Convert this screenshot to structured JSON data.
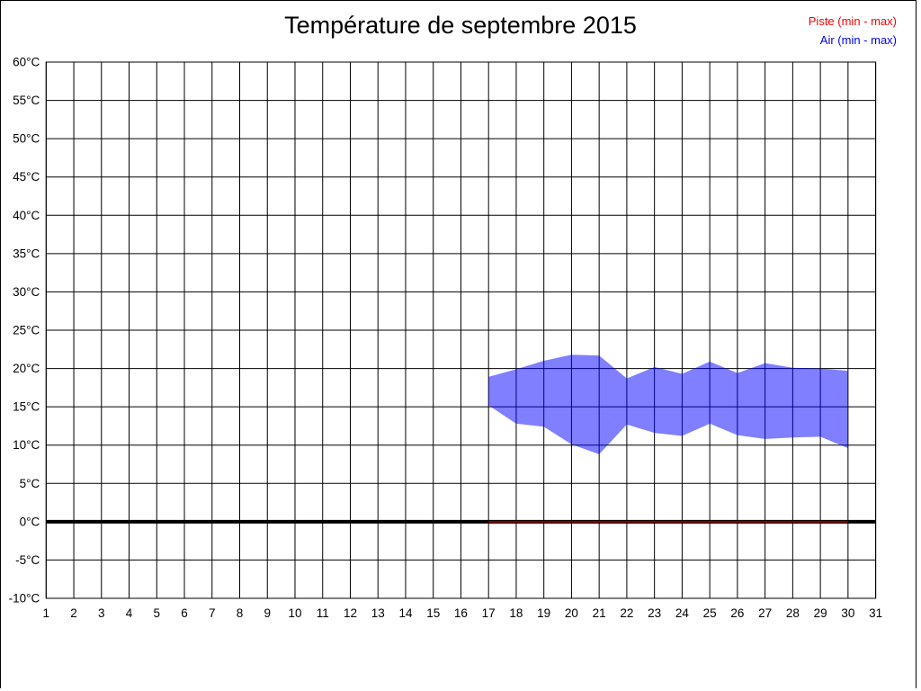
{
  "chart_data": {
    "type": "area",
    "title": "Température de septembre 2015",
    "legend_position": "top-right",
    "grid": true,
    "xlim": [
      1,
      31
    ],
    "ylim": [
      -10,
      60
    ],
    "x_ticks": [
      1,
      2,
      3,
      4,
      5,
      6,
      7,
      8,
      9,
      10,
      11,
      12,
      13,
      14,
      15,
      16,
      17,
      18,
      19,
      20,
      21,
      22,
      23,
      24,
      25,
      26,
      27,
      28,
      29,
      30,
      31
    ],
    "y_ticks": [
      {
        "value": 60,
        "label": "60°C"
      },
      {
        "value": 55,
        "label": "55°C"
      },
      {
        "value": 50,
        "label": "50°C"
      },
      {
        "value": 45,
        "label": "45°C"
      },
      {
        "value": 40,
        "label": "40°C"
      },
      {
        "value": 35,
        "label": "35°C"
      },
      {
        "value": 30,
        "label": "30°C"
      },
      {
        "value": 25,
        "label": "25°C"
      },
      {
        "value": 20,
        "label": "20°C"
      },
      {
        "value": 15,
        "label": "15°C"
      },
      {
        "value": 10,
        "label": "10°C"
      },
      {
        "value": 5,
        "label": "5°C"
      },
      {
        "value": 0,
        "label": "0°C"
      },
      {
        "value": -5,
        "label": "-5°C"
      },
      {
        "value": -10,
        "label": "-10°C"
      }
    ],
    "zero_line_value": 0,
    "zero_line_color": "#000000",
    "series": [
      {
        "name": "Piste (min - max)",
        "legend_color": "#ff0000",
        "draw_color": "rgba(255,0,0,0.5)",
        "days": [
          17,
          18,
          19,
          20,
          21,
          22,
          23,
          24,
          25,
          26,
          27,
          28,
          29,
          30
        ],
        "min": [
          0,
          0,
          0,
          0,
          0,
          0,
          0,
          0,
          0,
          0,
          0,
          0,
          0,
          0
        ],
        "max": [
          0,
          0,
          0,
          0,
          0,
          0,
          0,
          0,
          0,
          0,
          0,
          0,
          0,
          0
        ]
      },
      {
        "name": "Air (min - max)",
        "legend_color": "#0000ff",
        "draw_color": "rgba(0,0,255,0.5)",
        "days": [
          17,
          18,
          19,
          20,
          21,
          22,
          23,
          24,
          25,
          26,
          27,
          28,
          29,
          30
        ],
        "min": [
          15.2,
          12.8,
          12.4,
          10.1,
          8.8,
          12.7,
          11.6,
          11.2,
          12.8,
          11.3,
          10.8,
          11.0,
          11.1,
          9.6
        ],
        "max": [
          18.9,
          19.9,
          21.0,
          21.8,
          21.7,
          18.7,
          20.2,
          19.3,
          20.9,
          19.4,
          20.7,
          20.1,
          20.0,
          19.7
        ]
      }
    ]
  }
}
